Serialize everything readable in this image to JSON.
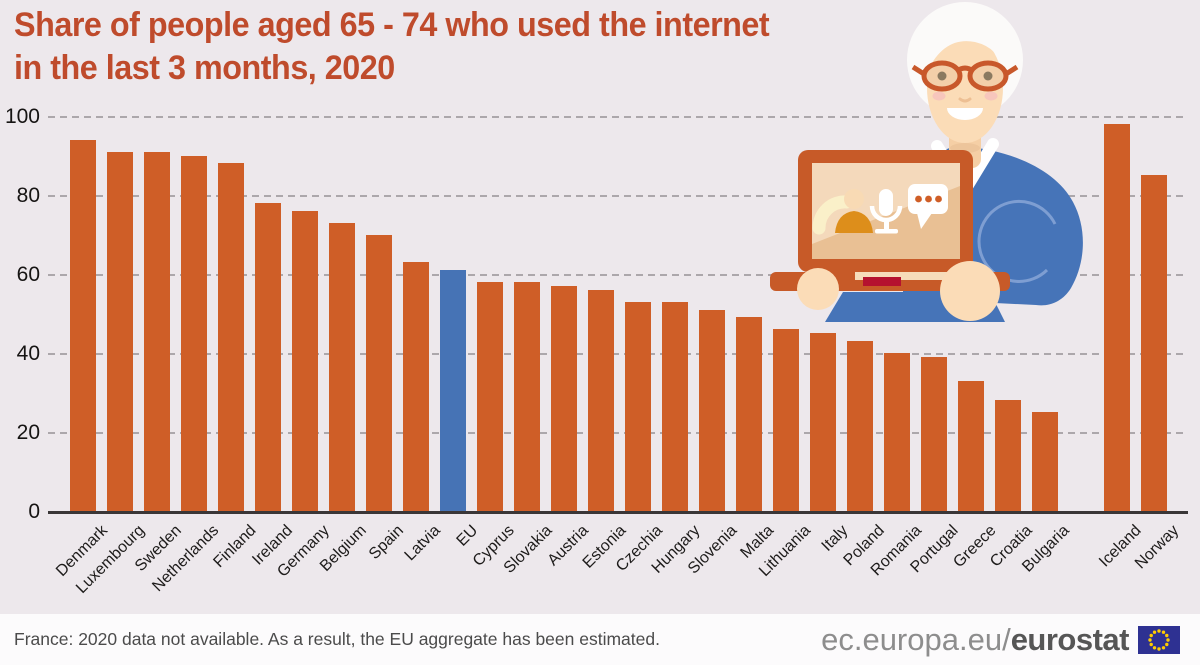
{
  "title": {
    "line1": "Share of people aged 65 - 74 who used the internet",
    "line2": "in the last 3 months, 2020"
  },
  "chart_data": {
    "type": "bar",
    "title": "Share of people aged 65 - 74 who used the internet in the last 3 months, 2020",
    "xlabel": "",
    "ylabel": "",
    "ylim": [
      0,
      100
    ],
    "yticks": [
      0,
      20,
      40,
      60,
      80,
      100
    ],
    "grid": "horizontal-dashed",
    "legend": "none",
    "bar_color": "#CF5E27",
    "highlight_color": "#4673B5",
    "bars": [
      {
        "label": "Denmark",
        "value": 94,
        "group": "eu"
      },
      {
        "label": "Luxembourg",
        "value": 91,
        "group": "eu"
      },
      {
        "label": "Sweden",
        "value": 91,
        "group": "eu"
      },
      {
        "label": "Netherlands",
        "value": 90,
        "group": "eu"
      },
      {
        "label": "Finland",
        "value": 88,
        "group": "eu"
      },
      {
        "label": "Ireland",
        "value": 78,
        "group": "eu"
      },
      {
        "label": "Germany",
        "value": 76,
        "group": "eu"
      },
      {
        "label": "Belgium",
        "value": 73,
        "group": "eu"
      },
      {
        "label": "Spain",
        "value": 70,
        "group": "eu"
      },
      {
        "label": "Latvia",
        "value": 63,
        "group": "eu"
      },
      {
        "label": "EU",
        "value": 61,
        "group": "eu",
        "highlight": true
      },
      {
        "label": "Cyprus",
        "value": 58,
        "group": "eu"
      },
      {
        "label": "Slovakia",
        "value": 58,
        "group": "eu"
      },
      {
        "label": "Austria",
        "value": 57,
        "group": "eu"
      },
      {
        "label": "Estonia",
        "value": 56,
        "group": "eu"
      },
      {
        "label": "Czechia",
        "value": 53,
        "group": "eu"
      },
      {
        "label": "Hungary",
        "value": 53,
        "group": "eu"
      },
      {
        "label": "Slovenia",
        "value": 51,
        "group": "eu"
      },
      {
        "label": "Malta",
        "value": 49,
        "group": "eu"
      },
      {
        "label": "Lithuania",
        "value": 46,
        "group": "eu"
      },
      {
        "label": "Italy",
        "value": 45,
        "group": "eu"
      },
      {
        "label": "Poland",
        "value": 43,
        "group": "eu"
      },
      {
        "label": "Romania",
        "value": 40,
        "group": "eu"
      },
      {
        "label": "Portugal",
        "value": 39,
        "group": "eu"
      },
      {
        "label": "Greece",
        "value": 33,
        "group": "eu"
      },
      {
        "label": "Croatia",
        "value": 28,
        "group": "eu"
      },
      {
        "label": "Bulgaria",
        "value": 25,
        "group": "eu"
      },
      {
        "label": "Iceland",
        "value": 98,
        "group": "efta"
      },
      {
        "label": "Norway",
        "value": 85,
        "group": "efta"
      }
    ]
  },
  "footer": {
    "note": "France: 2020 data not available. As a result, the EU aggregate has been estimated.",
    "site_regular": "ec.europa.eu/",
    "site_bold": "eurostat"
  },
  "illustration": {
    "description": "senior woman with white hair and orange glasses holding an orange laptop",
    "screen_icons": [
      "phone-call-icon",
      "person-icon",
      "microphone-icon",
      "chat-bubble-icon"
    ],
    "colors": {
      "sweater_blue": "#4674B8",
      "laptop_orange": "#C75A28",
      "skin": "#FBDCB7",
      "hair": "#FBFAF9",
      "power_slot_red": "#B5122F"
    }
  },
  "theme": {
    "background": "#EDE8EC",
    "title_color": "#BF4B2C",
    "footer_background": "#FCFBFC",
    "flag_blue": "#2E3192",
    "flag_star_yellow": "#FFCC00"
  }
}
